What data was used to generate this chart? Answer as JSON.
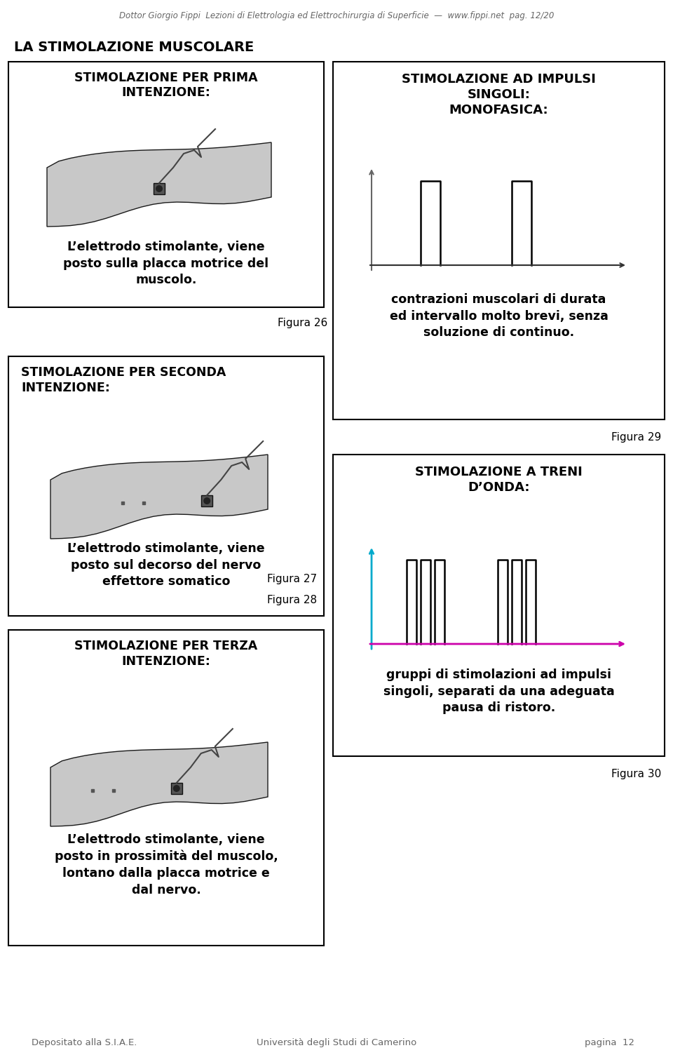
{
  "page_header": "Dottor Giorgio Fippi  Lezioni di Elettrologia ed Elettrochirurgia di Superficie  —  www.fippi.net  pag. 12/20",
  "page_footer_left": "Depositato alla S.I.A.E.",
  "page_footer_center": "Università degli Studi di Camerino",
  "page_footer_right": "pagina  12",
  "main_title": "LA STIMOLAZIONE MUSCOLARE",
  "box1_title": "STIMOLAZIONE PER PRIMA\nINTENZIONE:",
  "box1_text": "L’elettrodo stimolante, viene\nposto sulla placca motrice del\nmuscolo.",
  "box1_label": "Figura 26",
  "box2_title": "STIMOLAZIONE AD IMPULSI\nSINGOLI:\nMONOFASICA:",
  "box2_text": "contrazioni muscolari di durata\ned intervallo molto brevi, senza\nsoluzione di continuo.",
  "box2_label": "Figura 29",
  "box3_title": "STIMOLAZIONE PER SECONDA\nINTENZIONE:",
  "box3_text": "L’elettrodo stimolante, viene\nposto sul decorso del nervo\neffettore somatico",
  "box3_label_a": "Figura 27",
  "box3_label_b": "Figura 28",
  "box4_title": "STIMOLAZIONE A TRENI\nD’ONDA:",
  "box4_text": "gruppi di stimolazioni ad impulsi\nsingoli, separati da una adeguata\npausa di ristoro.",
  "box4_label": "Figura 30",
  "box5_title": "STIMOLAZIONE PER TERZA\nINTENZIONE:",
  "box5_text": "L’elettrodo stimolante, viene\nposto in prossimità del muscolo,\nlontano dalla placca motrice e\ndal nervo.",
  "bg_color": "#ffffff",
  "box_border_color": "#000000",
  "text_color": "#000000",
  "header_color": "#666666"
}
